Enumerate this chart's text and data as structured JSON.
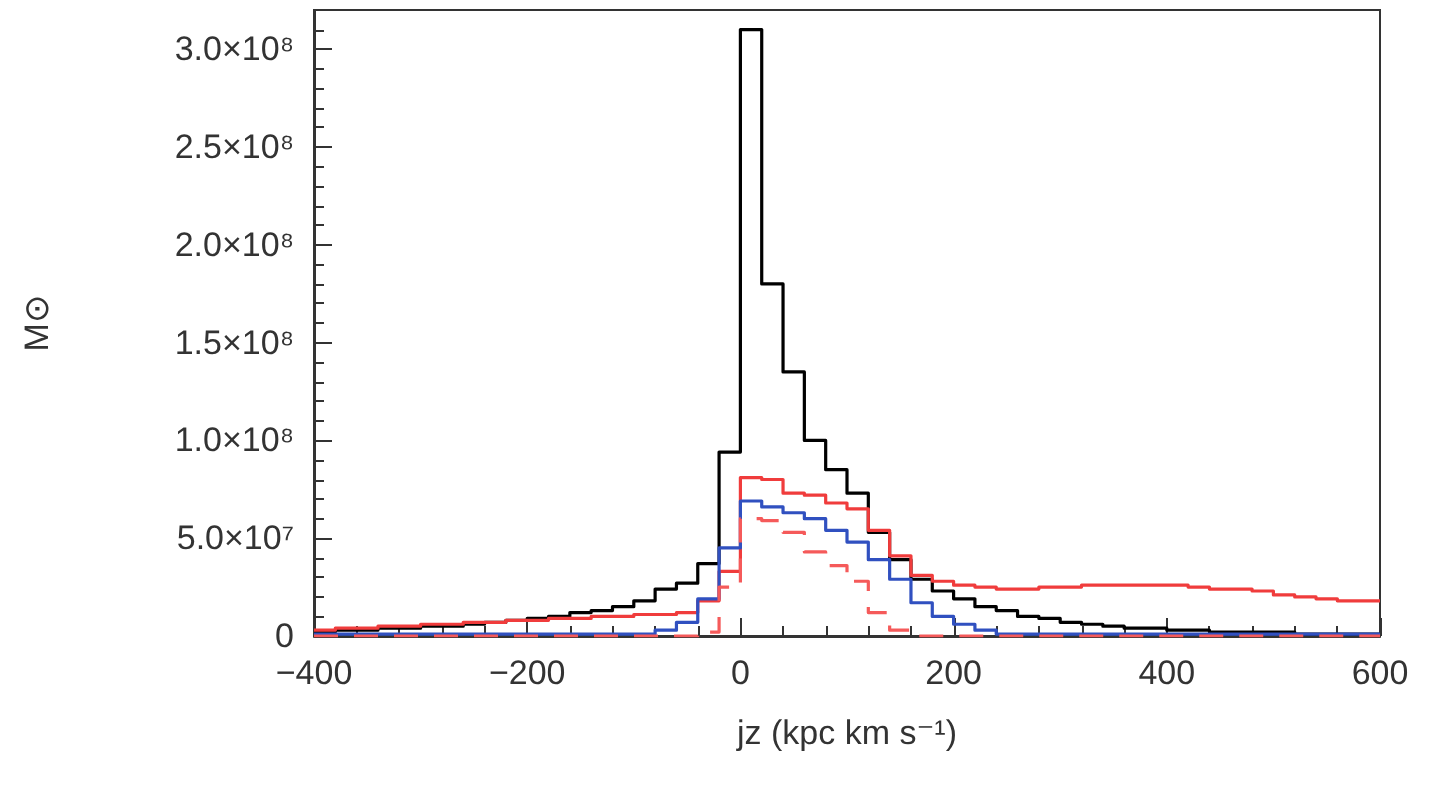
{
  "chart_data": {
    "type": "histogram",
    "xlabel": "jz (kpc km s⁻¹)",
    "ylabel": "M⊙",
    "bins": [
      -400,
      -380,
      -360,
      -340,
      -320,
      -300,
      -280,
      -260,
      -240,
      -220,
      -200,
      -180,
      -160,
      -140,
      -120,
      -100,
      -80,
      -60,
      -40,
      -20,
      0,
      20,
      40,
      60,
      80,
      100,
      120,
      140,
      160,
      180,
      200,
      220,
      240,
      260,
      280,
      300,
      320,
      340,
      360,
      380,
      400,
      420,
      440,
      460,
      480,
      500,
      520,
      540,
      560,
      580,
      600
    ],
    "series": [
      {
        "color": "#000000",
        "values": [
          2000000,
          3000000,
          3000000,
          4000000,
          4000000,
          5000000,
          5000000,
          6000000,
          7000000,
          8000000,
          9000000,
          10000000,
          12000000,
          13000000,
          15000000,
          18000000,
          24000000,
          27000000,
          37000000,
          94000000,
          310000000,
          180000000,
          135000000,
          100000000,
          85000000,
          73000000,
          53000000,
          39000000,
          29000000,
          23000000,
          19000000,
          15000000,
          13000000,
          10000000,
          9000000,
          7000000,
          6000000,
          5000000,
          4000000,
          4000000,
          3000000,
          3000000,
          2000000,
          2000000,
          2000000,
          2000000,
          1000000,
          1000000,
          1000000,
          1000000
        ]
      },
      {
        "color": "#f03c3c",
        "values": [
          3000000,
          4000000,
          4000000,
          5000000,
          5000000,
          6000000,
          6000000,
          7000000,
          7000000,
          8000000,
          8000000,
          9000000,
          9000000,
          10000000,
          10000000,
          11000000,
          11000000,
          12000000,
          18000000,
          33000000,
          81000000,
          80000000,
          73000000,
          72000000,
          68000000,
          65000000,
          54000000,
          41000000,
          31000000,
          28000000,
          26000000,
          25000000,
          24000000,
          24000000,
          25000000,
          25000000,
          26000000,
          26000000,
          26000000,
          26000000,
          26000000,
          25000000,
          24000000,
          24000000,
          23000000,
          21000000,
          20000000,
          19000000,
          18000000,
          18000000
        ]
      },
      {
        "color": "#3050c0",
        "values": [
          1000000,
          1000000,
          1000000,
          1000000,
          1000000,
          1000000,
          1000000,
          1000000,
          1000000,
          1000000,
          1000000,
          1000000,
          1000000,
          1000000,
          1000000,
          1000000,
          3000000,
          7000000,
          19000000,
          45000000,
          69000000,
          66000000,
          63000000,
          60000000,
          54000000,
          48000000,
          39000000,
          29000000,
          17000000,
          10000000,
          6000000,
          3000000,
          1000000,
          1000000,
          1000000,
          1000000,
          1000000,
          1000000,
          1000000,
          1000000,
          1000000,
          1000000,
          1000000,
          1000000,
          1000000,
          1000000,
          1000000,
          1000000,
          1000000,
          1000000
        ]
      },
      {
        "color": "#f55a5a",
        "line_style": "dashed",
        "values": [
          0,
          0,
          0,
          0,
          0,
          0,
          0,
          0,
          0,
          0,
          0,
          0,
          0,
          0,
          0,
          0,
          0,
          0,
          2000000,
          25000000,
          60000000,
          59000000,
          53000000,
          43000000,
          36000000,
          28000000,
          12000000,
          3000000,
          0,
          0,
          0,
          0,
          0,
          0,
          0,
          0,
          0,
          0,
          0,
          0,
          0,
          0,
          0,
          0,
          0,
          0,
          0,
          0,
          0,
          0
        ]
      }
    ],
    "xlim": [
      -400,
      600
    ],
    "xticks": [
      {
        "value": -400,
        "label": "−400"
      },
      {
        "value": -200,
        "label": "−200"
      },
      0,
      200,
      400,
      600
    ],
    "ylim": [
      0,
      320000000
    ],
    "yticks": [
      0,
      {
        "value": 50000000,
        "label": "5.0×10⁷"
      },
      {
        "value": 100000000,
        "label": "1.0×10⁸"
      },
      {
        "value": 150000000,
        "label": "1.5×10⁸"
      },
      {
        "value": 200000000,
        "label": "2.0×10⁸"
      },
      {
        "value": 250000000,
        "label": "2.5×10⁸"
      },
      {
        "value": 300000000,
        "label": "3.0×10⁸"
      }
    ]
  }
}
